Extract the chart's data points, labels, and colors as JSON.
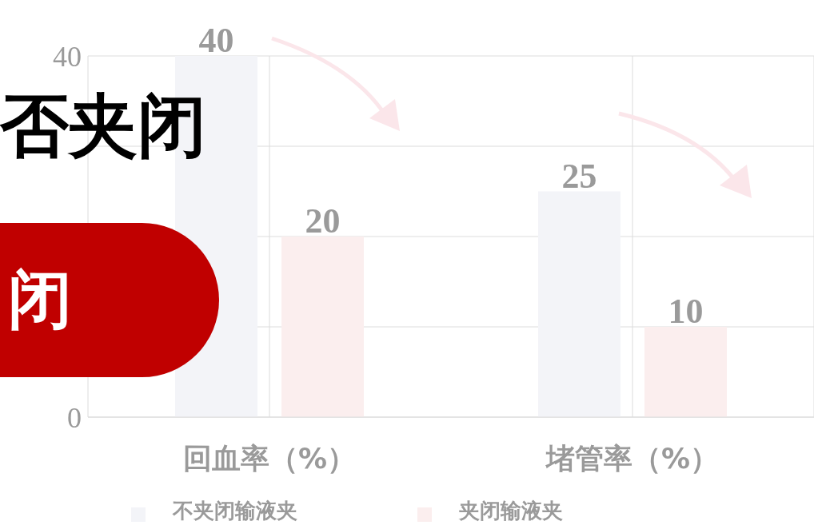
{
  "chart_data": {
    "type": "bar",
    "title": "否夹闭",
    "categories": [
      "回血率（%）",
      "堵管率（%）"
    ],
    "series": [
      {
        "name": "不夹闭输液夹",
        "color": "#f3f4f8",
        "values": [
          40,
          25
        ]
      },
      {
        "name": "夹闭输液夹",
        "color": "#fbeeee",
        "values": [
          20,
          10
        ]
      }
    ],
    "ylim": [
      0,
      40
    ],
    "yticks": [
      0,
      {
        "value": 10,
        "label": null
      },
      {
        "value": 20,
        "label": null
      },
      {
        "value": 30,
        "label": null
      },
      40
    ],
    "grid": true,
    "legend": "bottom",
    "data_labels": true,
    "annotations": [
      "闭"
    ]
  }
}
